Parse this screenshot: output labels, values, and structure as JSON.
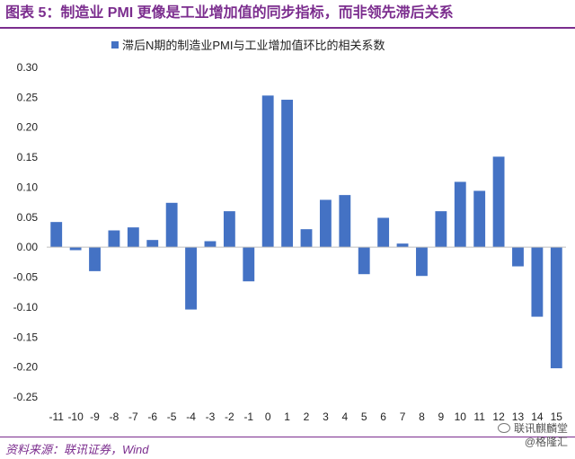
{
  "header": {
    "title": "图表 5：制造业 PMI 更像是工业增加值的同步指标，而非领先滞后关系"
  },
  "footer": {
    "source": "资料来源：联讯证券，Wind",
    "watermark_line1": "联讯麒麟堂",
    "watermark_line2": "@格隆汇"
  },
  "chart_data": {
    "type": "bar",
    "categories": [
      "-11",
      "-10",
      "-9",
      "-8",
      "-7",
      "-6",
      "-5",
      "-4",
      "-3",
      "-2",
      "-1",
      "0",
      "1",
      "2",
      "3",
      "4",
      "5",
      "6",
      "7",
      "8",
      "9",
      "10",
      "11",
      "12",
      "13",
      "14",
      "15"
    ],
    "series": [
      {
        "name": "滞后N期的制造业PMI与工业增加值环比的相关系数",
        "values": [
          0.042,
          -0.005,
          -0.04,
          0.028,
          0.033,
          0.012,
          0.074,
          -0.104,
          0.01,
          0.06,
          -0.057,
          0.253,
          0.246,
          0.03,
          0.079,
          0.087,
          -0.045,
          0.049,
          0.006,
          -0.048,
          0.06,
          0.109,
          0.094,
          0.151,
          -0.032,
          -0.116,
          -0.202
        ]
      }
    ],
    "yticks": [
      "0.30",
      "0.25",
      "0.20",
      "0.15",
      "0.10",
      "0.05",
      "0.00",
      "-0.05",
      "-0.10",
      "-0.15",
      "-0.20",
      "-0.25"
    ],
    "ylim": [
      -0.25,
      0.3
    ],
    "grid": false,
    "legend": "top-center",
    "bar_color": "#4472c4"
  }
}
